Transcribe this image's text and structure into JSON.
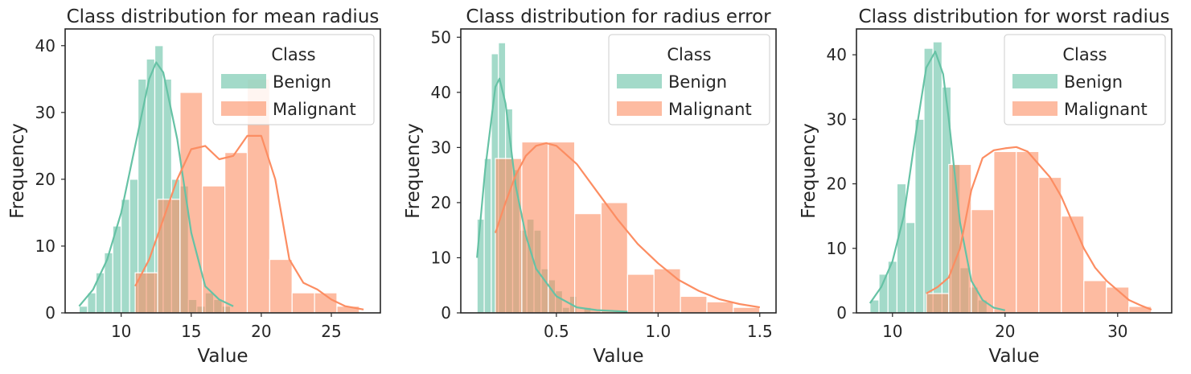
{
  "figure": {
    "background": "#ffffff"
  },
  "colors": {
    "Benign": "#66c2a5",
    "Malignant": "#fc8d62"
  },
  "chart_data": [
    {
      "type": "bar",
      "title": "Class distribution for mean radius",
      "xlabel": "Value",
      "ylabel": "Frequency",
      "xlim": [
        6.0,
        28.5
      ],
      "ylim": [
        0,
        42.5
      ],
      "xticks": [
        10,
        15,
        20,
        25
      ],
      "yticks": [
        0,
        10,
        20,
        30,
        40
      ],
      "legend": {
        "title": "Class",
        "entries": [
          "Benign",
          "Malignant"
        ],
        "placement": "top-right"
      },
      "series": [
        {
          "name": "Benign",
          "bins": [
            {
              "x0": 7.0,
              "x1": 7.6,
              "y": 1
            },
            {
              "x0": 7.6,
              "x1": 8.2,
              "y": 3
            },
            {
              "x0": 8.2,
              "x1": 8.8,
              "y": 6
            },
            {
              "x0": 8.8,
              "x1": 9.4,
              "y": 9
            },
            {
              "x0": 9.4,
              "x1": 10.0,
              "y": 13
            },
            {
              "x0": 10.0,
              "x1": 10.6,
              "y": 17
            },
            {
              "x0": 10.6,
              "x1": 11.2,
              "y": 20
            },
            {
              "x0": 11.2,
              "x1": 11.8,
              "y": 35
            },
            {
              "x0": 11.8,
              "x1": 12.4,
              "y": 38
            },
            {
              "x0": 12.4,
              "x1": 13.0,
              "y": 40
            },
            {
              "x0": 13.0,
              "x1": 13.6,
              "y": 35
            },
            {
              "x0": 13.6,
              "x1": 14.2,
              "y": 20
            },
            {
              "x0": 14.2,
              "x1": 14.8,
              "y": 19
            },
            {
              "x0": 14.8,
              "x1": 15.4,
              "y": 2
            },
            {
              "x0": 15.4,
              "x1": 16.0,
              "y": 1
            },
            {
              "x0": 16.0,
              "x1": 16.6,
              "y": 3
            },
            {
              "x0": 16.6,
              "x1": 17.2,
              "y": 2
            },
            {
              "x0": 17.2,
              "x1": 17.8,
              "y": 1
            }
          ],
          "kde": {
            "x": [
              7,
              8,
              9,
              10,
              11,
              12,
              12.5,
              13,
              14,
              15,
              16,
              17,
              18
            ],
            "y": [
              1,
              3.5,
              8,
              15,
              25,
              35,
              37.5,
              36,
              26,
              12,
              4,
              2,
              1
            ]
          }
        },
        {
          "name": "Malignant",
          "bins": [
            {
              "x0": 11.0,
              "x1": 12.6,
              "y": 6
            },
            {
              "x0": 12.6,
              "x1": 14.2,
              "y": 17
            },
            {
              "x0": 14.2,
              "x1": 15.8,
              "y": 33
            },
            {
              "x0": 15.8,
              "x1": 17.4,
              "y": 19
            },
            {
              "x0": 17.4,
              "x1": 19.0,
              "y": 24
            },
            {
              "x0": 19.0,
              "x1": 20.6,
              "y": 35
            },
            {
              "x0": 20.6,
              "x1": 22.2,
              "y": 8
            },
            {
              "x0": 22.2,
              "x1": 23.8,
              "y": 3
            },
            {
              "x0": 23.8,
              "x1": 25.4,
              "y": 3
            },
            {
              "x0": 25.4,
              "x1": 27.0,
              "y": 1
            }
          ],
          "kde": {
            "x": [
              11,
              12,
              13,
              14,
              15,
              16,
              17,
              18,
              19,
              20,
              21,
              22,
              23,
              24,
              25,
              26,
              27.3
            ],
            "y": [
              4,
              8,
              14,
              20,
              24.5,
              25,
              23,
              23.5,
              26.5,
              26.5,
              20,
              8,
              4.5,
              3.5,
              2,
              1,
              0.5
            ]
          }
        }
      ]
    },
    {
      "type": "bar",
      "title": "Class distribution for radius error",
      "xlabel": "Value",
      "ylabel": "Frequency",
      "xlim": [
        0.03,
        1.58
      ],
      "ylim": [
        0,
        51.5
      ],
      "xticks": [
        0.5,
        1.0,
        1.5
      ],
      "xtick_labels": [
        "0.5",
        "1.0",
        "1.5"
      ],
      "yticks": [
        0,
        10,
        20,
        30,
        40,
        50
      ],
      "legend": {
        "title": "Class",
        "entries": [
          "Benign",
          "Malignant"
        ],
        "placement": "top-right"
      },
      "series": [
        {
          "name": "Benign",
          "bins": [
            {
              "x0": 0.11,
              "x1": 0.145,
              "y": 17
            },
            {
              "x0": 0.145,
              "x1": 0.18,
              "y": 28
            },
            {
              "x0": 0.18,
              "x1": 0.215,
              "y": 47
            },
            {
              "x0": 0.215,
              "x1": 0.25,
              "y": 49
            },
            {
              "x0": 0.25,
              "x1": 0.285,
              "y": 37
            },
            {
              "x0": 0.285,
              "x1": 0.32,
              "y": 26
            },
            {
              "x0": 0.32,
              "x1": 0.355,
              "y": 15
            },
            {
              "x0": 0.355,
              "x1": 0.39,
              "y": 17
            },
            {
              "x0": 0.39,
              "x1": 0.425,
              "y": 15
            },
            {
              "x0": 0.425,
              "x1": 0.46,
              "y": 8
            },
            {
              "x0": 0.46,
              "x1": 0.495,
              "y": 6
            },
            {
              "x0": 0.495,
              "x1": 0.53,
              "y": 4
            },
            {
              "x0": 0.53,
              "x1": 0.565,
              "y": 1
            },
            {
              "x0": 0.565,
              "x1": 0.6,
              "y": 3
            },
            {
              "x0": 0.6,
              "x1": 0.635,
              "y": 0
            },
            {
              "x0": 0.635,
              "x1": 0.67,
              "y": 1
            }
          ],
          "kde": {
            "x": [
              0.11,
              0.15,
              0.2,
              0.22,
              0.25,
              0.3,
              0.35,
              0.4,
              0.5,
              0.6,
              0.7,
              0.8,
              0.85
            ],
            "y": [
              10,
              26,
              41,
              42.5,
              38,
              23,
              14,
              8,
              3,
              1,
              0.5,
              0.3,
              0.2
            ]
          }
        },
        {
          "name": "Malignant",
          "bins": [
            {
              "x0": 0.2,
              "x1": 0.33,
              "y": 28
            },
            {
              "x0": 0.33,
              "x1": 0.46,
              "y": 31
            },
            {
              "x0": 0.46,
              "x1": 0.59,
              "y": 31
            },
            {
              "x0": 0.59,
              "x1": 0.72,
              "y": 18
            },
            {
              "x0": 0.72,
              "x1": 0.85,
              "y": 20
            },
            {
              "x0": 0.85,
              "x1": 0.98,
              "y": 7
            },
            {
              "x0": 0.98,
              "x1": 1.11,
              "y": 8
            },
            {
              "x0": 1.11,
              "x1": 1.24,
              "y": 3
            },
            {
              "x0": 1.24,
              "x1": 1.37,
              "y": 2
            },
            {
              "x0": 1.37,
              "x1": 1.5,
              "y": 1
            }
          ],
          "kde": {
            "x": [
              0.2,
              0.25,
              0.3,
              0.35,
              0.4,
              0.45,
              0.5,
              0.6,
              0.7,
              0.8,
              0.9,
              1.0,
              1.1,
              1.2,
              1.3,
              1.4,
              1.5
            ],
            "y": [
              14.5,
              20,
              25,
              28.5,
              30.3,
              30.8,
              30.3,
              27,
              22,
              17,
              12.5,
              9,
              6,
              4,
              2.5,
              1.6,
              1
            ]
          }
        }
      ]
    },
    {
      "type": "bar",
      "title": "Class distribution for worst radius",
      "xlabel": "Value",
      "ylabel": "Frequency",
      "xlim": [
        6.8,
        34.8
      ],
      "ylim": [
        0,
        44.0
      ],
      "xticks": [
        10,
        20,
        30
      ],
      "yticks": [
        0,
        10,
        20,
        30,
        40
      ],
      "legend": {
        "title": "Class",
        "entries": [
          "Benign",
          "Malignant"
        ],
        "placement": "top-right"
      },
      "series": [
        {
          "name": "Benign",
          "bins": [
            {
              "x0": 8.0,
              "x1": 8.8,
              "y": 2
            },
            {
              "x0": 8.8,
              "x1": 9.6,
              "y": 6
            },
            {
              "x0": 9.6,
              "x1": 10.4,
              "y": 8
            },
            {
              "x0": 10.4,
              "x1": 11.2,
              "y": 20
            },
            {
              "x0": 11.2,
              "x1": 12.0,
              "y": 14
            },
            {
              "x0": 12.0,
              "x1": 12.8,
              "y": 30
            },
            {
              "x0": 12.8,
              "x1": 13.6,
              "y": 41
            },
            {
              "x0": 13.6,
              "x1": 14.4,
              "y": 42
            },
            {
              "x0": 14.4,
              "x1": 15.2,
              "y": 35
            },
            {
              "x0": 15.2,
              "x1": 16.0,
              "y": 23
            },
            {
              "x0": 16.0,
              "x1": 16.8,
              "y": 7
            },
            {
              "x0": 16.8,
              "x1": 17.6,
              "y": 4
            },
            {
              "x0": 17.6,
              "x1": 18.4,
              "y": 2
            }
          ],
          "kde": {
            "x": [
              8,
              9,
              10,
              11,
              12,
              13,
              13.8,
              14.5,
              15,
              16,
              17,
              18,
              19,
              20
            ],
            "y": [
              1.5,
              4,
              8,
              15,
              27,
              38,
              40.5,
              37,
              30,
              14,
              5,
              2,
              0.8,
              0.4
            ]
          }
        },
        {
          "name": "Malignant",
          "bins": [
            {
              "x0": 13.0,
              "x1": 15.0,
              "y": 3
            },
            {
              "x0": 15.0,
              "x1": 17.0,
              "y": 23
            },
            {
              "x0": 17.0,
              "x1": 19.0,
              "y": 16
            },
            {
              "x0": 19.0,
              "x1": 21.0,
              "y": 25
            },
            {
              "x0": 21.0,
              "x1": 23.0,
              "y": 25
            },
            {
              "x0": 23.0,
              "x1": 25.0,
              "y": 21
            },
            {
              "x0": 25.0,
              "x1": 27.0,
              "y": 15
            },
            {
              "x0": 27.0,
              "x1": 29.0,
              "y": 5
            },
            {
              "x0": 29.0,
              "x1": 31.0,
              "y": 4
            },
            {
              "x0": 31.0,
              "x1": 33.0,
              "y": 1
            }
          ],
          "kde": {
            "x": [
              13,
              14,
              15,
              16,
              17,
              18,
              19,
              20,
              21,
              22,
              23,
              24,
              25,
              26,
              27,
              28,
              29,
              30,
              31,
              32,
              33
            ],
            "y": [
              3,
              4,
              5.5,
              10,
              19,
              24,
              25.2,
              25.5,
              25.7,
              25,
              23,
              21,
              18,
              14,
              10,
              7,
              5,
              3.5,
              2,
              1.2,
              0.5
            ]
          }
        }
      ]
    }
  ]
}
